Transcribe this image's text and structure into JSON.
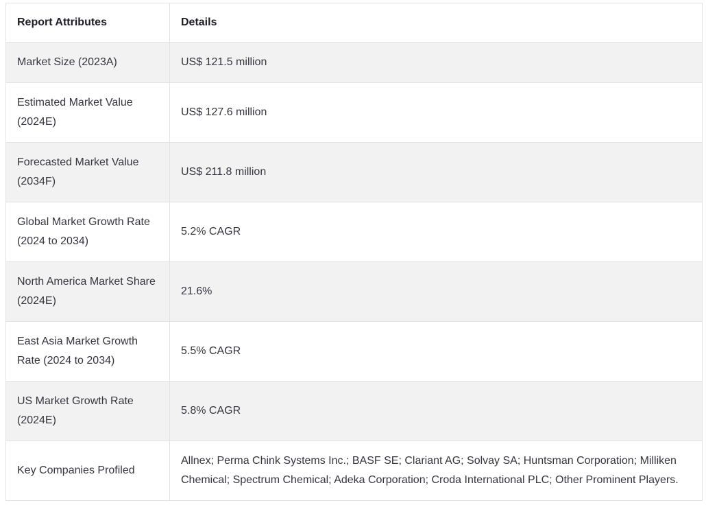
{
  "table": {
    "name": "report-attributes-table",
    "headers": [
      {
        "label": "Report Attributes"
      },
      {
        "label": "Details"
      }
    ],
    "rows": [
      {
        "attribute": "Market Size (2023A)",
        "detail": "US$ 121.5 million"
      },
      {
        "attribute": "Estimated Market Value (2024E)",
        "detail": "US$ 127.6 million"
      },
      {
        "attribute": "Forecasted Market Value (2034F)",
        "detail": "US$ 211.8 million"
      },
      {
        "attribute": "Global Market Growth Rate (2024 to 2034)",
        "detail": "5.2% CAGR"
      },
      {
        "attribute": "North America Market Share (2024E)",
        "detail": "21.6%"
      },
      {
        "attribute": "East Asia Market Growth Rate (2024 to 2034)",
        "detail": "5.5% CAGR"
      },
      {
        "attribute": "US Market Growth Rate (2024E)",
        "detail": "5.8% CAGR"
      },
      {
        "attribute": "Key Companies Profiled",
        "detail": "Allnex; Perma Chink Systems Inc.; BASF SE; Clariant AG; Solvay SA; Huntsman Corporation; Milliken Chemical; Spectrum Chemical; Adeka Corporation; Croda International PLC; Other Prominent Players."
      }
    ],
    "colors": {
      "row_alt_bg": "#f2f2f2",
      "border": "#e3e3e6",
      "body_text": "#35353f",
      "header_text": "#1d1d26"
    }
  }
}
